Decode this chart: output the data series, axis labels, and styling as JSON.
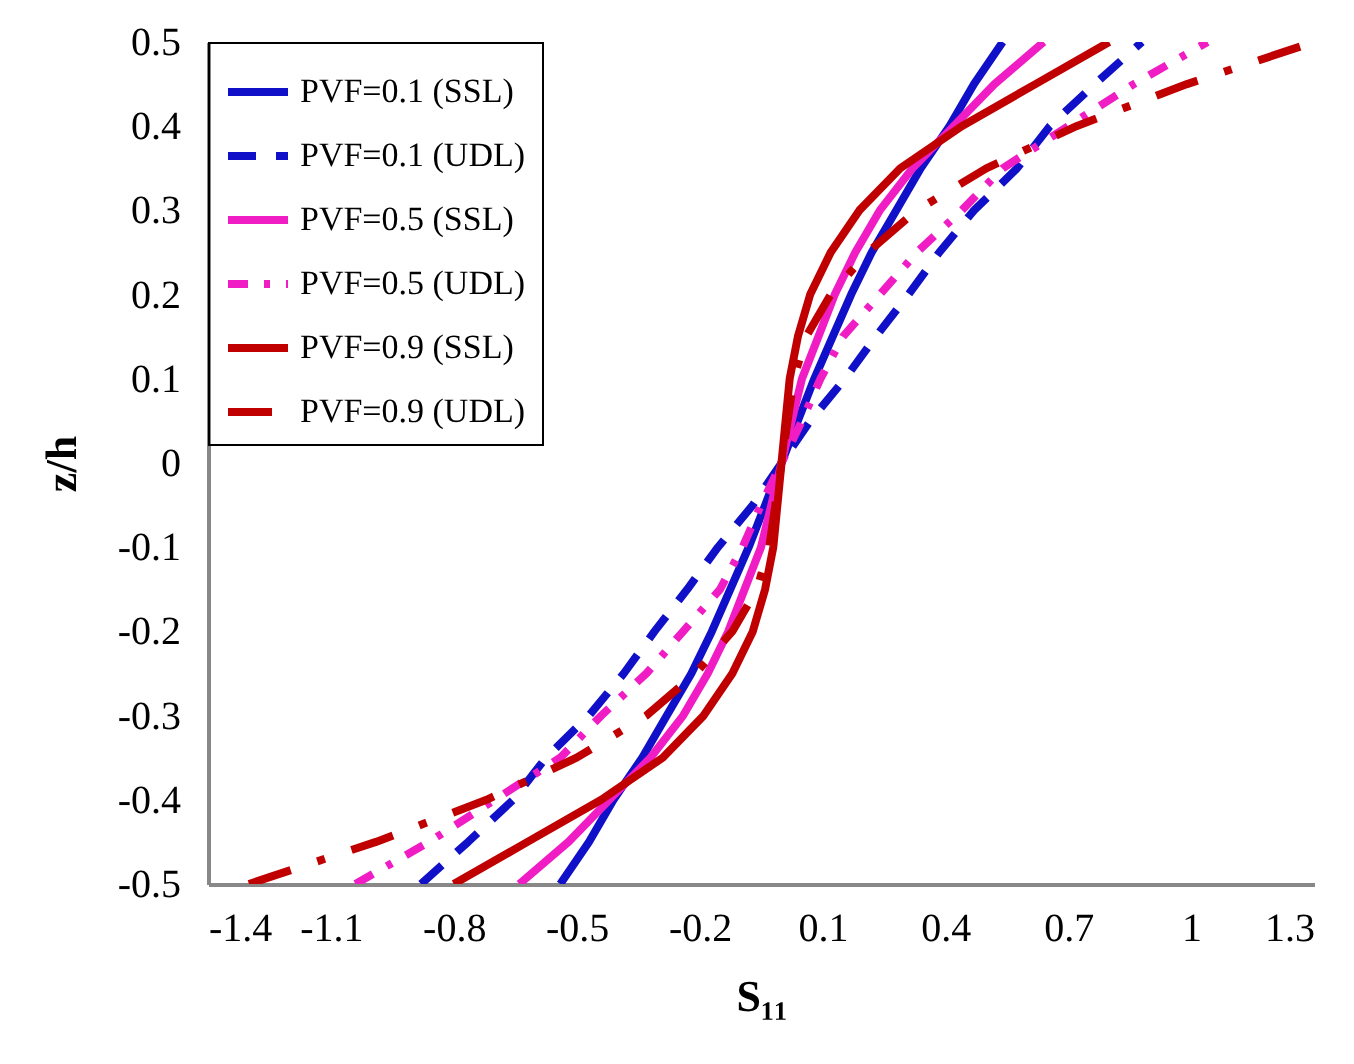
{
  "chart_data": {
    "type": "line",
    "xlabel": "S₁₁",
    "ylabel": "z/h",
    "xlim": [
      -1.4,
      1.3
    ],
    "xticks": [
      -1.4,
      -1.1,
      -0.8,
      -0.5,
      -0.2,
      0.1,
      0.4,
      0.7,
      1,
      1.3
    ],
    "ylim": [
      -0.5,
      0.5
    ],
    "yticks": [
      -0.5,
      -0.4,
      -0.3,
      -0.2,
      -0.1,
      0,
      0.1,
      0.2,
      0.3,
      0.4,
      0.5
    ],
    "grid": false,
    "legend": "top left",
    "series": [
      {
        "name": "PVF=0.1 (SSL)",
        "color": "#1010c8",
        "line_style": "solid",
        "x": [
          -0.54,
          -0.47,
          -0.41,
          -0.34,
          -0.28,
          -0.22,
          -0.17,
          -0.125,
          -0.08,
          -0.04,
          0,
          0.04,
          0.08,
          0.125,
          0.17,
          0.22,
          0.28,
          0.34,
          0.41,
          0.47,
          0.54
        ],
        "values": [
          -0.5,
          -0.45,
          -0.4,
          -0.35,
          -0.3,
          -0.25,
          -0.2,
          -0.15,
          -0.1,
          -0.05,
          0,
          0.05,
          0.1,
          0.15,
          0.2,
          0.25,
          0.3,
          0.35,
          0.4,
          0.45,
          0.5
        ]
      },
      {
        "name": "PVF=0.1 (UDL)",
        "color": "#1010c8",
        "line_style": "dashed",
        "x": [
          -0.88,
          -0.765,
          -0.655,
          -0.575,
          -0.47,
          -0.385,
          -0.31,
          -0.23,
          -0.155,
          -0.07,
          0,
          0.07,
          0.155,
          0.23,
          0.31,
          0.385,
          0.47,
          0.575,
          0.655,
          0.765,
          0.88
        ],
        "values": [
          -0.5,
          -0.45,
          -0.4,
          -0.35,
          -0.3,
          -0.25,
          -0.2,
          -0.15,
          -0.1,
          -0.05,
          0,
          0.05,
          0.1,
          0.15,
          0.2,
          0.25,
          0.3,
          0.35,
          0.4,
          0.45,
          0.5
        ]
      },
      {
        "name": "PVF=0.5 (SSL)",
        "color": "#f01dc5",
        "line_style": "solid",
        "x": [
          -0.64,
          -0.52,
          -0.42,
          -0.32,
          -0.24,
          -0.18,
          -0.13,
          -0.09,
          -0.05,
          -0.025,
          0,
          0.025,
          0.05,
          0.09,
          0.13,
          0.18,
          0.24,
          0.32,
          0.42,
          0.52,
          0.64
        ],
        "values": [
          -0.5,
          -0.45,
          -0.4,
          -0.35,
          -0.3,
          -0.25,
          -0.2,
          -0.15,
          -0.1,
          -0.05,
          0,
          0.05,
          0.1,
          0.15,
          0.2,
          0.25,
          0.3,
          0.35,
          0.4,
          0.45,
          0.5
        ]
      },
      {
        "name": "PVF=0.5 (UDL)",
        "color": "#f01dc5",
        "line_style": "dashdot",
        "x": [
          -1.04,
          -0.86,
          -0.7,
          -0.54,
          -0.44,
          -0.33,
          -0.24,
          -0.15,
          -0.095,
          -0.05,
          0,
          0.05,
          0.095,
          0.15,
          0.24,
          0.33,
          0.44,
          0.54,
          0.7,
          0.86,
          1.04
        ],
        "values": [
          -0.5,
          -0.45,
          -0.4,
          -0.35,
          -0.3,
          -0.25,
          -0.2,
          -0.15,
          -0.1,
          -0.05,
          0,
          0.05,
          0.1,
          0.15,
          0.2,
          0.25,
          0.3,
          0.35,
          0.4,
          0.45,
          0.5
        ]
      },
      {
        "name": "PVF=0.9 (SSL)",
        "color": "#c00000",
        "line_style": "solid",
        "x": [
          -0.8,
          -0.62,
          -0.44,
          -0.29,
          -0.19,
          -0.12,
          -0.07,
          -0.04,
          -0.02,
          -0.01,
          0,
          0.01,
          0.02,
          0.04,
          0.07,
          0.12,
          0.19,
          0.29,
          0.44,
          0.62,
          0.8
        ],
        "values": [
          -0.5,
          -0.45,
          -0.4,
          -0.35,
          -0.3,
          -0.25,
          -0.2,
          -0.15,
          -0.1,
          -0.05,
          0,
          0.05,
          0.1,
          0.15,
          0.2,
          0.25,
          0.3,
          0.35,
          0.4,
          0.45,
          0.5
        ]
      },
      {
        "name": "PVF=0.9 (UDL)",
        "color": "#c00000",
        "line_style": "longdashdot",
        "x": [
          -1.3,
          -0.99,
          -0.72,
          -0.5,
          -0.33,
          -0.21,
          -0.12,
          -0.06,
          -0.03,
          -0.015,
          0,
          0.015,
          0.03,
          0.06,
          0.12,
          0.21,
          0.33,
          0.5,
          0.72,
          0.99,
          1.3
        ],
        "values": [
          -0.5,
          -0.45,
          -0.4,
          -0.35,
          -0.3,
          -0.25,
          -0.2,
          -0.15,
          -0.1,
          -0.05,
          0,
          0.05,
          0.1,
          0.15,
          0.2,
          0.25,
          0.3,
          0.35,
          0.4,
          0.45,
          0.5
        ]
      }
    ]
  }
}
